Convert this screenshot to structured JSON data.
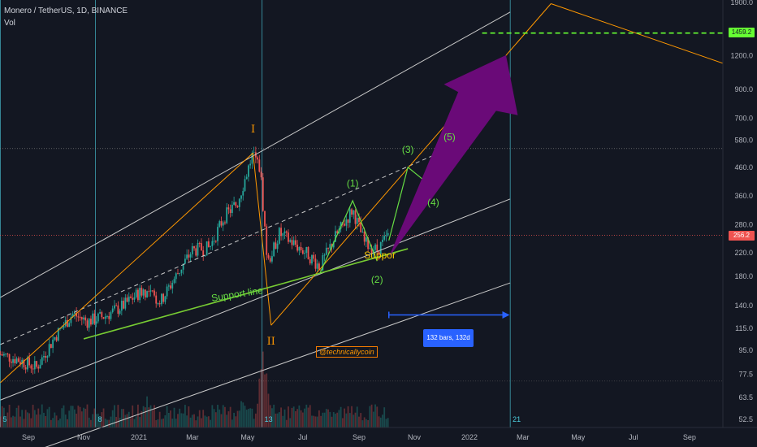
{
  "header": {
    "symbol_line": "Monero / TetherUS, 1D, BINANCE",
    "indicator": "Vol"
  },
  "colors": {
    "background": "#131722",
    "up": "#26a69a",
    "down": "#ef5350",
    "support": "#77cc33",
    "wave": "#66dd44",
    "orange": "#ff9800",
    "channel": "#c8c8c8",
    "arrow": "#6a0a78",
    "cycle": "#4dd0e1",
    "target_line": "#66ff33",
    "measure_bg": "#2962ff"
  },
  "annotations": {
    "support_line": "Support line",
    "support_small": "Suppor",
    "handle": "@technicallycoin",
    "measure": "132 bars, 132d",
    "wave_major": [
      "I",
      "II"
    ],
    "wave_minor": [
      "(1)",
      "(2)",
      "(3)",
      "(4)",
      "(5)"
    ],
    "cycle_numbers": [
      "5",
      "8",
      "13",
      "21"
    ]
  },
  "price_labels": {
    "target": "1459.2",
    "current": "256.2"
  },
  "chart_data": {
    "type": "candlestick",
    "title": "Monero / TetherUS, 1D, BINANCE",
    "y_scale": "log",
    "ylim": [
      48,
      2000
    ],
    "y_ticks": [
      "52.5",
      "63.5",
      "77.5",
      "95.0",
      "115.0",
      "140.0",
      "180.0",
      "220.0",
      "280.0",
      "360.0",
      "460.0",
      "580.0",
      "700.0",
      "900.0",
      "1200.0",
      "1900.0"
    ],
    "x_ticks": [
      "Sep",
      "Nov",
      "2021",
      "Mar",
      "May",
      "Jul",
      "Sep",
      "Nov",
      "2022",
      "Mar",
      "May",
      "Jul",
      "Sep"
    ],
    "price_path": [
      {
        "date": "2020-08-01",
        "price": 92
      },
      {
        "date": "2020-08-20",
        "price": 88
      },
      {
        "date": "2020-09-10",
        "price": 82
      },
      {
        "date": "2020-10-01",
        "price": 108
      },
      {
        "date": "2020-10-20",
        "price": 130
      },
      {
        "date": "2020-11-05",
        "price": 122
      },
      {
        "date": "2020-11-25",
        "price": 128
      },
      {
        "date": "2020-12-15",
        "price": 140
      },
      {
        "date": "2021-01-05",
        "price": 160
      },
      {
        "date": "2021-01-25",
        "price": 145
      },
      {
        "date": "2021-02-15",
        "price": 190
      },
      {
        "date": "2021-03-01",
        "price": 225
      },
      {
        "date": "2021-03-20",
        "price": 230
      },
      {
        "date": "2021-04-05",
        "price": 300
      },
      {
        "date": "2021-04-20",
        "price": 340
      },
      {
        "date": "2021-05-07",
        "price": 520
      },
      {
        "date": "2021-05-15",
        "price": 450
      },
      {
        "date": "2021-05-23",
        "price": 200
      },
      {
        "date": "2021-06-05",
        "price": 260
      },
      {
        "date": "2021-06-20",
        "price": 240
      },
      {
        "date": "2021-07-05",
        "price": 220
      },
      {
        "date": "2021-07-20",
        "price": 195
      },
      {
        "date": "2021-08-05",
        "price": 250
      },
      {
        "date": "2021-08-25",
        "price": 320
      },
      {
        "date": "2021-09-07",
        "price": 240
      },
      {
        "date": "2021-09-21",
        "price": 225
      },
      {
        "date": "2021-10-04",
        "price": 256
      }
    ],
    "volume_scale": "relative",
    "volume_spikes": [
      {
        "date": "2021-01-10",
        "relative": 0.45
      },
      {
        "date": "2021-04-25",
        "relative": 0.4
      },
      {
        "date": "2021-05-19",
        "relative": 1.0
      }
    ],
    "projection": {
      "series": "Wave (3)-(4)-(5) path",
      "points": [
        {
          "date": "2021-10-04",
          "price": 245
        },
        {
          "date": "2021-10-25",
          "price": 460
        },
        {
          "date": "2021-11-20",
          "price": 390
        },
        {
          "date": "2021-12-10",
          "price": 520
        }
      ]
    },
    "horizontal_levels": [
      1459.2,
      256.2
    ]
  }
}
